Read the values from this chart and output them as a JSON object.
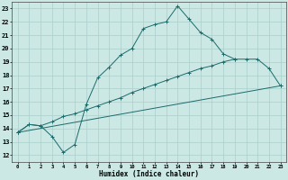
{
  "xlabel": "Humidex (Indice chaleur)",
  "bg_color": "#cce8e5",
  "grid_color": "#aacfcc",
  "line_color": "#1a6b6b",
  "xlim": [
    -0.5,
    23.5
  ],
  "ylim": [
    11.5,
    23.5
  ],
  "xticks": [
    0,
    1,
    2,
    3,
    4,
    5,
    6,
    7,
    8,
    9,
    10,
    11,
    12,
    13,
    14,
    15,
    16,
    17,
    18,
    19,
    20,
    21,
    22,
    23
  ],
  "yticks": [
    12,
    13,
    14,
    15,
    16,
    17,
    18,
    19,
    20,
    21,
    22,
    23
  ],
  "line1_x": [
    0,
    1,
    2,
    3,
    4,
    5,
    6,
    7,
    8,
    9,
    10,
    11,
    12,
    13,
    14,
    15,
    16,
    17,
    18,
    19
  ],
  "line1_y": [
    13.7,
    14.3,
    14.2,
    13.4,
    12.2,
    12.8,
    15.8,
    17.8,
    18.6,
    19.5,
    20.0,
    21.5,
    21.8,
    22.0,
    23.2,
    22.2,
    21.2,
    20.7,
    19.6,
    19.2
  ],
  "line2_x": [
    0,
    1,
    2,
    3,
    4,
    5,
    6,
    7,
    8,
    9,
    10,
    11,
    12,
    13,
    14,
    15,
    16,
    17,
    18,
    19,
    20,
    21,
    22,
    23
  ],
  "line2_y": [
    13.7,
    14.3,
    14.2,
    14.5,
    14.9,
    15.1,
    15.4,
    15.7,
    16.0,
    16.3,
    16.7,
    17.0,
    17.3,
    17.6,
    17.9,
    18.2,
    18.5,
    18.7,
    19.0,
    19.2,
    19.2,
    19.2,
    18.5,
    17.2
  ],
  "line3_x": [
    0,
    23
  ],
  "line3_y": [
    13.7,
    17.2
  ]
}
